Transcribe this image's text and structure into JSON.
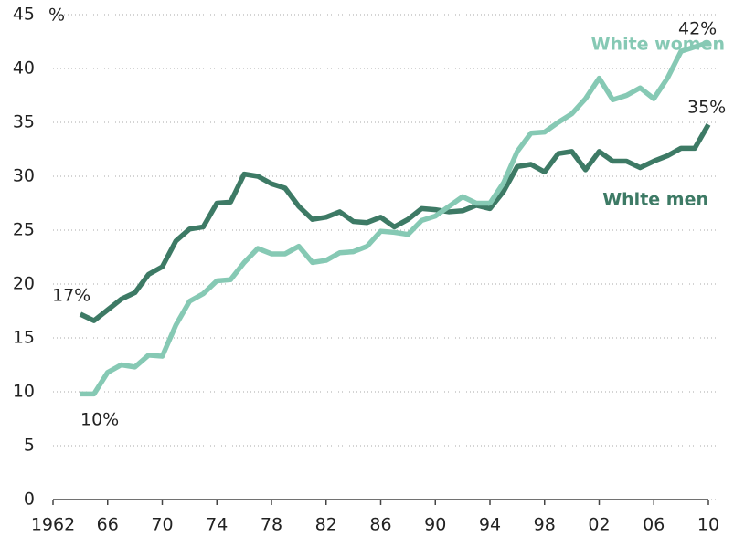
{
  "chart_data": {
    "type": "line",
    "annotations": [
      "%",
      "17%",
      "10%",
      "42%",
      "35%"
    ],
    "x": [
      1964,
      1965,
      1966,
      1967,
      1968,
      1969,
      1970,
      1971,
      1972,
      1973,
      1974,
      1975,
      1976,
      1977,
      1978,
      1979,
      1980,
      1981,
      1982,
      1983,
      1984,
      1985,
      1986,
      1987,
      1988,
      1989,
      1990,
      1991,
      1992,
      1993,
      1994,
      1995,
      1996,
      1997,
      1998,
      1999,
      2000,
      2001,
      2002,
      2003,
      2004,
      2005,
      2006,
      2007,
      2008,
      2009,
      2010
    ],
    "series": [
      {
        "name": "White men",
        "color": "#3d7a65",
        "values": [
          17.2,
          16.6,
          17.6,
          18.6,
          19.2,
          20.9,
          21.6,
          24.0,
          25.1,
          25.3,
          27.5,
          27.6,
          30.2,
          30.0,
          29.3,
          28.9,
          27.2,
          26.0,
          26.2,
          26.7,
          25.8,
          25.7,
          26.2,
          25.3,
          26.0,
          27.0,
          26.9,
          26.7,
          26.8,
          27.3,
          27.0,
          28.6,
          30.9,
          31.1,
          30.4,
          32.1,
          32.3,
          30.6,
          32.3,
          31.4,
          31.4,
          30.8,
          31.4,
          31.9,
          32.6,
          32.6,
          34.8
        ]
      },
      {
        "name": "White women",
        "color": "#86c9b4",
        "values": [
          9.8,
          9.8,
          11.8,
          12.5,
          12.3,
          13.4,
          13.3,
          16.2,
          18.4,
          19.1,
          20.3,
          20.4,
          22.0,
          23.3,
          22.8,
          22.8,
          23.5,
          22.0,
          22.2,
          22.9,
          23.0,
          23.5,
          24.9,
          24.8,
          24.6,
          25.9,
          26.3,
          27.2,
          28.1,
          27.5,
          27.5,
          29.4,
          32.3,
          34.0,
          34.1,
          35.0,
          35.8,
          37.2,
          39.1,
          37.1,
          37.5,
          38.2,
          37.2,
          39.1,
          41.6,
          42.0,
          42.4
        ]
      }
    ],
    "xlim": [
      1962,
      2010
    ],
    "xticks": [
      1962,
      {
        "value": 1966,
        "label": "66"
      },
      {
        "value": 1970,
        "label": "70"
      },
      {
        "value": 1974,
        "label": "74"
      },
      {
        "value": 1978,
        "label": "78"
      },
      {
        "value": 1982,
        "label": "82"
      },
      {
        "value": 1986,
        "label": "86"
      },
      {
        "value": 1990,
        "label": "90"
      },
      {
        "value": 1994,
        "label": "94"
      },
      {
        "value": 1998,
        "label": "98"
      },
      {
        "value": 2002,
        "label": "02"
      },
      {
        "value": 2006,
        "label": "06"
      },
      {
        "value": 2010,
        "label": "10"
      }
    ],
    "ylim": [
      0,
      45
    ],
    "yticks": [
      0,
      5,
      10,
      15,
      20,
      25,
      30,
      35,
      40,
      45
    ],
    "grid": true
  }
}
